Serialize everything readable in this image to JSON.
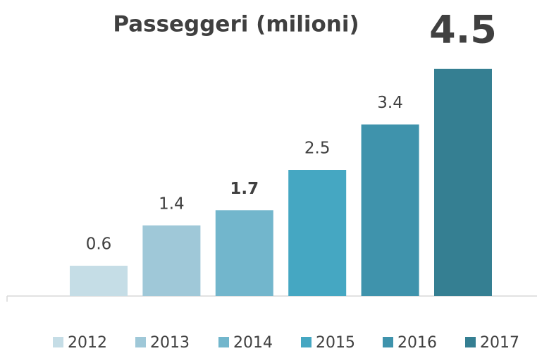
{
  "chart_data": {
    "type": "bar",
    "title": "Passeggeri (milioni)",
    "series": [
      {
        "name": "2012",
        "color": "#c5dde6",
        "values": [
          0.6
        ]
      },
      {
        "name": "2013",
        "color": "#9fc8d8",
        "values": [
          1.4
        ]
      },
      {
        "name": "2014",
        "color": "#72b6cc",
        "values": [
          1.7
        ]
      },
      {
        "name": "2015",
        "color": "#45a7c2",
        "values": [
          2.5
        ]
      },
      {
        "name": "2016",
        "color": "#3f93ac",
        "values": [
          3.4
        ]
      },
      {
        "name": "2017",
        "color": "#357f92",
        "values": [
          4.5
        ]
      }
    ]
  }
}
